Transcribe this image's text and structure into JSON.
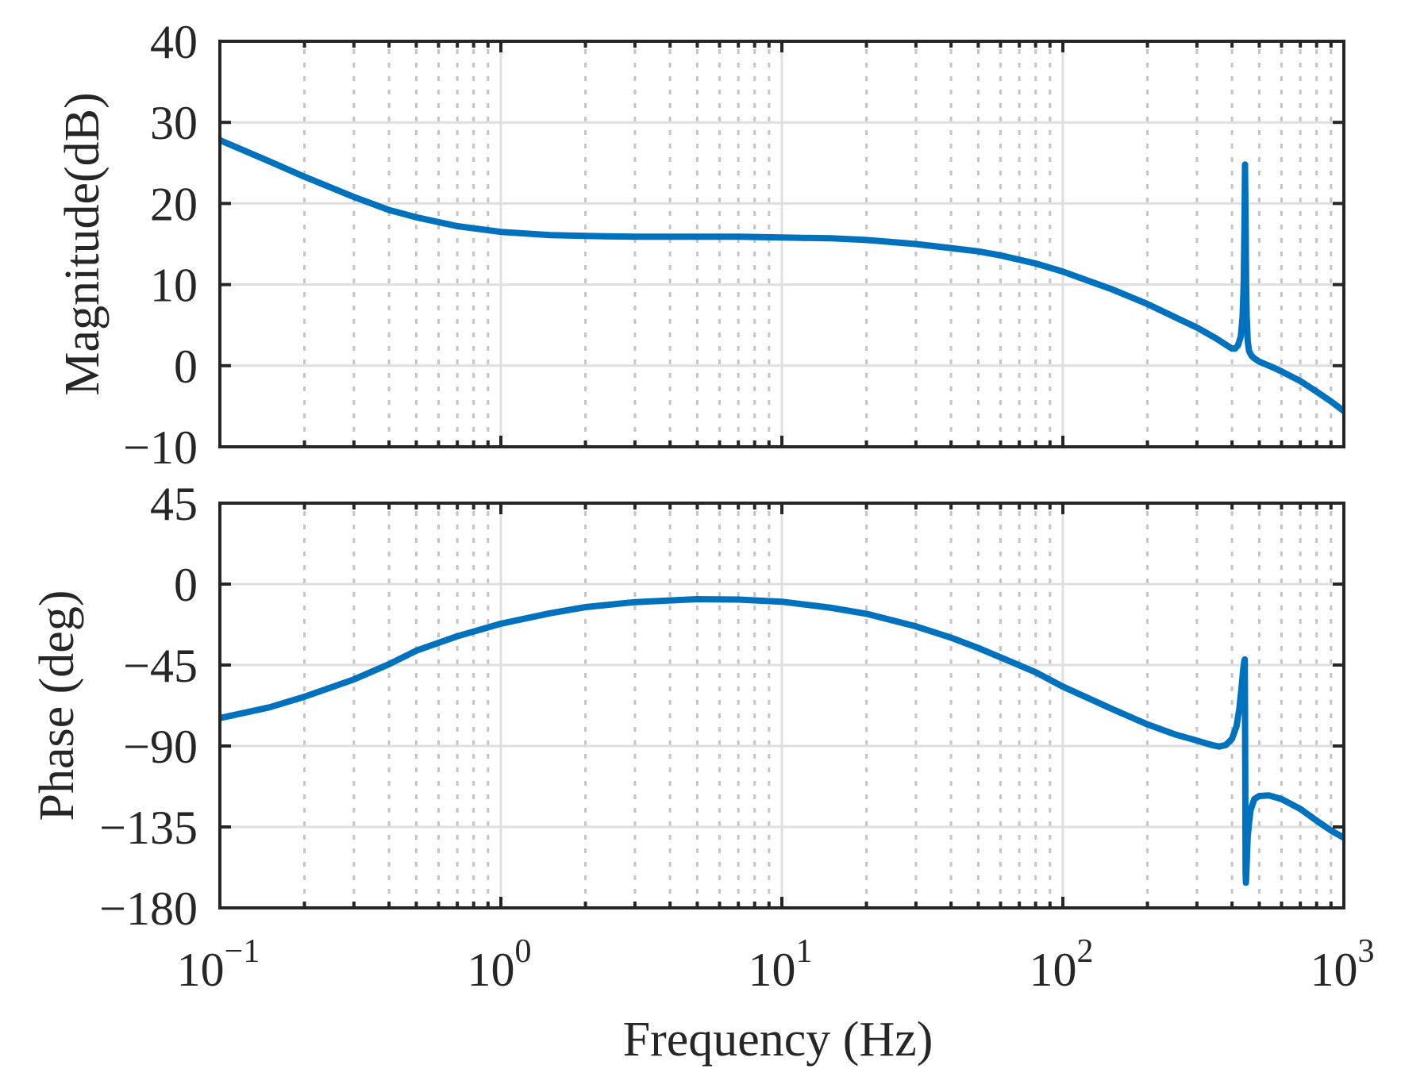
{
  "figure": {
    "xlabel": "Frequency (Hz)",
    "line_color": "#0072BD",
    "axes_color": "#262626",
    "grid_major_color": "#dfdfdf",
    "grid_minor_color": "#c4c4c4"
  },
  "chart_data": [
    {
      "type": "line",
      "title": "",
      "xlabel": "",
      "ylabel": "Magnitude(dB)",
      "xscale": "log",
      "xlim": [
        0.1,
        1000
      ],
      "ylim": [
        -10,
        40
      ],
      "yticks": [
        -10,
        0,
        10,
        20,
        30,
        40
      ],
      "ytick_labels": [
        "−10",
        "0",
        "10",
        "20",
        "30",
        "40"
      ],
      "grid": "major+minor",
      "legend": null,
      "series": [
        {
          "name": "Magnitude",
          "x": [
            0.1,
            0.15,
            0.2,
            0.3,
            0.4,
            0.5,
            0.7,
            1,
            1.5,
            2,
            3,
            5,
            7,
            10,
            15,
            20,
            30,
            40,
            50,
            60,
            80,
            100,
            150,
            200,
            250,
            300,
            350,
            380,
            400,
            410,
            420,
            430,
            436,
            440,
            443,
            445,
            447,
            449,
            451,
            455,
            460,
            470,
            480,
            500,
            550,
            600,
            700,
            800,
            900,
            1000
          ],
          "y": [
            27.8,
            25.2,
            23.3,
            20.8,
            19.2,
            18.3,
            17.2,
            16.5,
            16.1,
            16.0,
            15.9,
            15.9,
            15.9,
            15.8,
            15.7,
            15.5,
            15.0,
            14.5,
            14.1,
            13.6,
            12.6,
            11.6,
            9.4,
            7.6,
            6.0,
            4.7,
            3.4,
            2.6,
            2.1,
            2.1,
            2.5,
            3.6,
            6.0,
            10.0,
            17.0,
            24.8,
            18.0,
            10.0,
            6.0,
            3.0,
            1.8,
            1.2,
            0.9,
            0.5,
            -0.1,
            -0.7,
            -1.9,
            -3.2,
            -4.4,
            -5.6
          ]
        }
      ]
    },
    {
      "type": "line",
      "title": "",
      "xlabel": "Frequency (Hz)",
      "ylabel": "Phase (deg)",
      "xscale": "log",
      "xlim": [
        0.1,
        1000
      ],
      "ylim": [
        -180,
        45
      ],
      "yticks": [
        -180,
        -135,
        -90,
        -45,
        0,
        45
      ],
      "ytick_labels": [
        "−180",
        "−135",
        "−90",
        "−45",
        "0",
        "45"
      ],
      "xticks": [
        0.1,
        1,
        10,
        100,
        1000
      ],
      "xtick_labels": [
        {
          "base": "10",
          "exp": "−1"
        },
        {
          "base": "10",
          "exp": "0"
        },
        {
          "base": "10",
          "exp": "1"
        },
        {
          "base": "10",
          "exp": "2"
        },
        {
          "base": "10",
          "exp": "3"
        }
      ],
      "grid": "major+minor",
      "legend": null,
      "series": [
        {
          "name": "Phase",
          "x": [
            0.1,
            0.15,
            0.2,
            0.3,
            0.4,
            0.5,
            0.7,
            1,
            1.5,
            2,
            3,
            5,
            7,
            10,
            15,
            20,
            30,
            40,
            50,
            60,
            80,
            100,
            150,
            200,
            250,
            300,
            340,
            360,
            380,
            400,
            415,
            425,
            432,
            438,
            442,
            444,
            445,
            446,
            447,
            448,
            450,
            455,
            465,
            480,
            500,
            542,
            600,
            700,
            800,
            900,
            1000
          ],
          "y": [
            -74.5,
            -68.5,
            -62.6,
            -53.0,
            -44.5,
            -37.0,
            -29.0,
            -22.0,
            -16.2,
            -12.8,
            -10.0,
            -8.4,
            -8.6,
            -9.8,
            -13.2,
            -16.5,
            -23.5,
            -29.8,
            -35.5,
            -40.7,
            -49.0,
            -57.0,
            -69.5,
            -78.0,
            -83.5,
            -87.0,
            -89.5,
            -90.3,
            -89.5,
            -86.0,
            -79.0,
            -69.0,
            -58.0,
            -48.0,
            -43.0,
            -41.9,
            -70.0,
            -120.0,
            -160.0,
            -166.0,
            -160.0,
            -140.0,
            -126.0,
            -119.5,
            -117.8,
            -117.5,
            -119.5,
            -125.0,
            -131.5,
            -137.0,
            -141.0
          ]
        }
      ]
    }
  ]
}
